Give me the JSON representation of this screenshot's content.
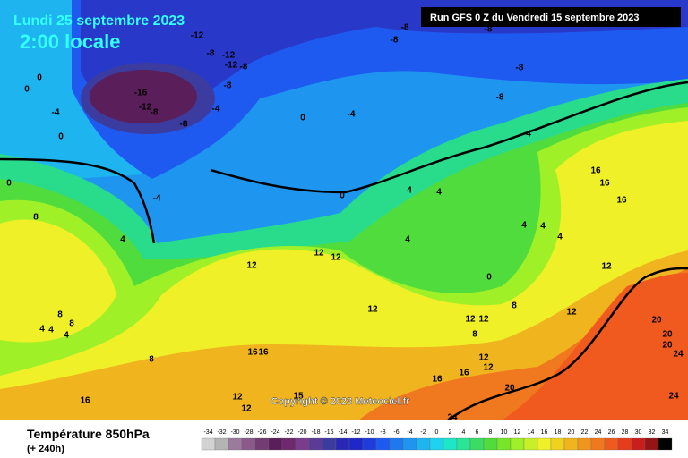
{
  "header": {
    "date": "Lundi 25 septembre 2023",
    "time": "2:00 locale",
    "run": "Run GFS 0 Z du Vendredi 15 septembre 2023"
  },
  "map": {
    "labels": [
      "-12",
      "-8",
      "-8",
      "-8",
      "-8",
      "-12",
      "-12",
      "-8",
      "-8",
      "-16",
      "-12",
      "-8",
      "-4",
      "-8",
      "0",
      "0",
      "-4",
      "0",
      "0",
      "-4",
      "-8",
      "-8",
      "0",
      "-4",
      "0",
      "8",
      "4",
      "4",
      "4",
      "4",
      "4",
      "4",
      "4",
      "4",
      "12",
      "12",
      "12",
      "12",
      "12",
      "12",
      "12",
      "8",
      "8",
      "8",
      "4",
      "4",
      "4",
      "8",
      "16",
      "16",
      "12",
      "12",
      "16",
      "16",
      "16",
      "12",
      "12",
      "15",
      "20",
      "24",
      "20",
      "20",
      "20",
      "24",
      "24",
      "16",
      "16",
      "16",
      "12",
      "0",
      "8"
    ],
    "copyright": "Copyright © 2023 Meteociel.fr"
  },
  "footer": {
    "title": "Température 850hPa",
    "lead": "(+ 240h)",
    "scale": {
      "values": [
        -34,
        -32,
        -30,
        -28,
        -26,
        -24,
        -22,
        -20,
        -18,
        -16,
        -14,
        -12,
        -10,
        -8,
        -6,
        -4,
        -2,
        0,
        2,
        4,
        6,
        8,
        10,
        12,
        14,
        16,
        18,
        20,
        22,
        24,
        26,
        28,
        30,
        32,
        34
      ],
      "colors": [
        "#d2d2d2",
        "#b4b4b4",
        "#9b7a9b",
        "#8a5a8a",
        "#733c73",
        "#5a1e5a",
        "#6e286e",
        "#7a3c8c",
        "#5a3c96",
        "#3c3ca0",
        "#2828b4",
        "#1e28c8",
        "#1e3cdc",
        "#1e5af0",
        "#1e78f0",
        "#1e96f0",
        "#1eb4f0",
        "#1ed2f0",
        "#1ee6c8",
        "#28e696",
        "#3cdc64",
        "#50dc3c",
        "#78e628",
        "#a0f028",
        "#c8f028",
        "#f0f028",
        "#f0d21e",
        "#f0b41e",
        "#f0961e",
        "#f0781e",
        "#f05a1e",
        "#e63c1e",
        "#c81e1e",
        "#961414",
        "#000000"
      ]
    }
  }
}
